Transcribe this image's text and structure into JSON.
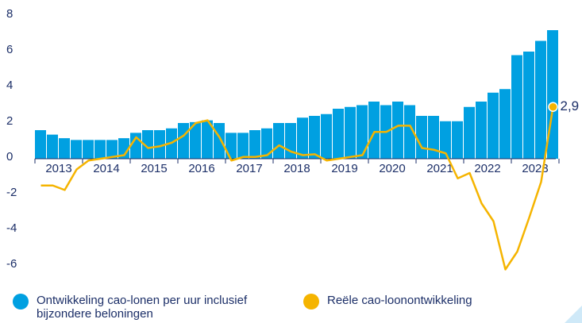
{
  "chart_data": {
    "type": "combo",
    "categories": [
      null,
      "2013",
      null,
      null,
      null,
      "2014",
      null,
      null,
      null,
      "2015",
      null,
      null,
      null,
      "2016",
      null,
      null,
      null,
      "2017",
      null,
      null,
      null,
      "2018",
      null,
      null,
      null,
      "2019",
      null,
      null,
      null,
      "2020",
      null,
      null,
      null,
      "2021",
      null,
      null,
      null,
      "2022",
      null,
      null,
      null,
      "2023",
      null,
      null
    ],
    "ylim": [
      -6.5,
      8
    ],
    "yticks": [
      8,
      6,
      4,
      2,
      0,
      -2,
      -4,
      -6
    ],
    "grid": false,
    "legend": "bottom",
    "series": [
      {
        "name": "Ontwikkeling cao-lonen per uur inclusief bijzondere beloningen",
        "type": "bar",
        "color": "#00a0e1",
        "values": [
          1.6,
          1.35,
          1.15,
          1.05,
          1.05,
          1.05,
          1.05,
          1.15,
          1.45,
          1.6,
          1.6,
          1.7,
          2.0,
          2.05,
          2.15,
          2.0,
          1.45,
          1.45,
          1.6,
          1.7,
          2.0,
          2.0,
          2.3,
          2.4,
          2.5,
          2.8,
          2.9,
          3.0,
          3.2,
          3.0,
          3.2,
          3.0,
          2.4,
          2.4,
          2.1,
          2.1,
          2.9,
          3.2,
          3.7,
          3.9,
          5.8,
          6.0,
          6.6,
          7.2
        ]
      },
      {
        "name": "Reële cao-loonontwikkeling",
        "type": "line",
        "color": "#f5b400",
        "values": [
          -1.5,
          -1.5,
          -1.75,
          -0.6,
          -0.1,
          0.0,
          0.1,
          0.2,
          1.2,
          0.6,
          0.7,
          0.9,
          1.3,
          2.0,
          2.15,
          1.2,
          -0.1,
          0.1,
          0.1,
          0.2,
          0.75,
          0.4,
          0.2,
          0.25,
          -0.1,
          0.0,
          0.1,
          0.2,
          1.5,
          1.5,
          1.85,
          1.85,
          0.6,
          0.5,
          0.3,
          -1.1,
          -0.8,
          -2.5,
          -3.5,
          -6.2,
          -5.2,
          -3.3,
          -1.3,
          2.9
        ],
        "value_labels": [
          null,
          null,
          null,
          null,
          null,
          null,
          null,
          null,
          null,
          null,
          null,
          null,
          null,
          null,
          null,
          null,
          null,
          null,
          null,
          null,
          null,
          null,
          null,
          null,
          null,
          null,
          null,
          null,
          null,
          null,
          null,
          null,
          null,
          null,
          null,
          null,
          null,
          null,
          null,
          null,
          null,
          null,
          null,
          "2,9"
        ]
      }
    ]
  }
}
